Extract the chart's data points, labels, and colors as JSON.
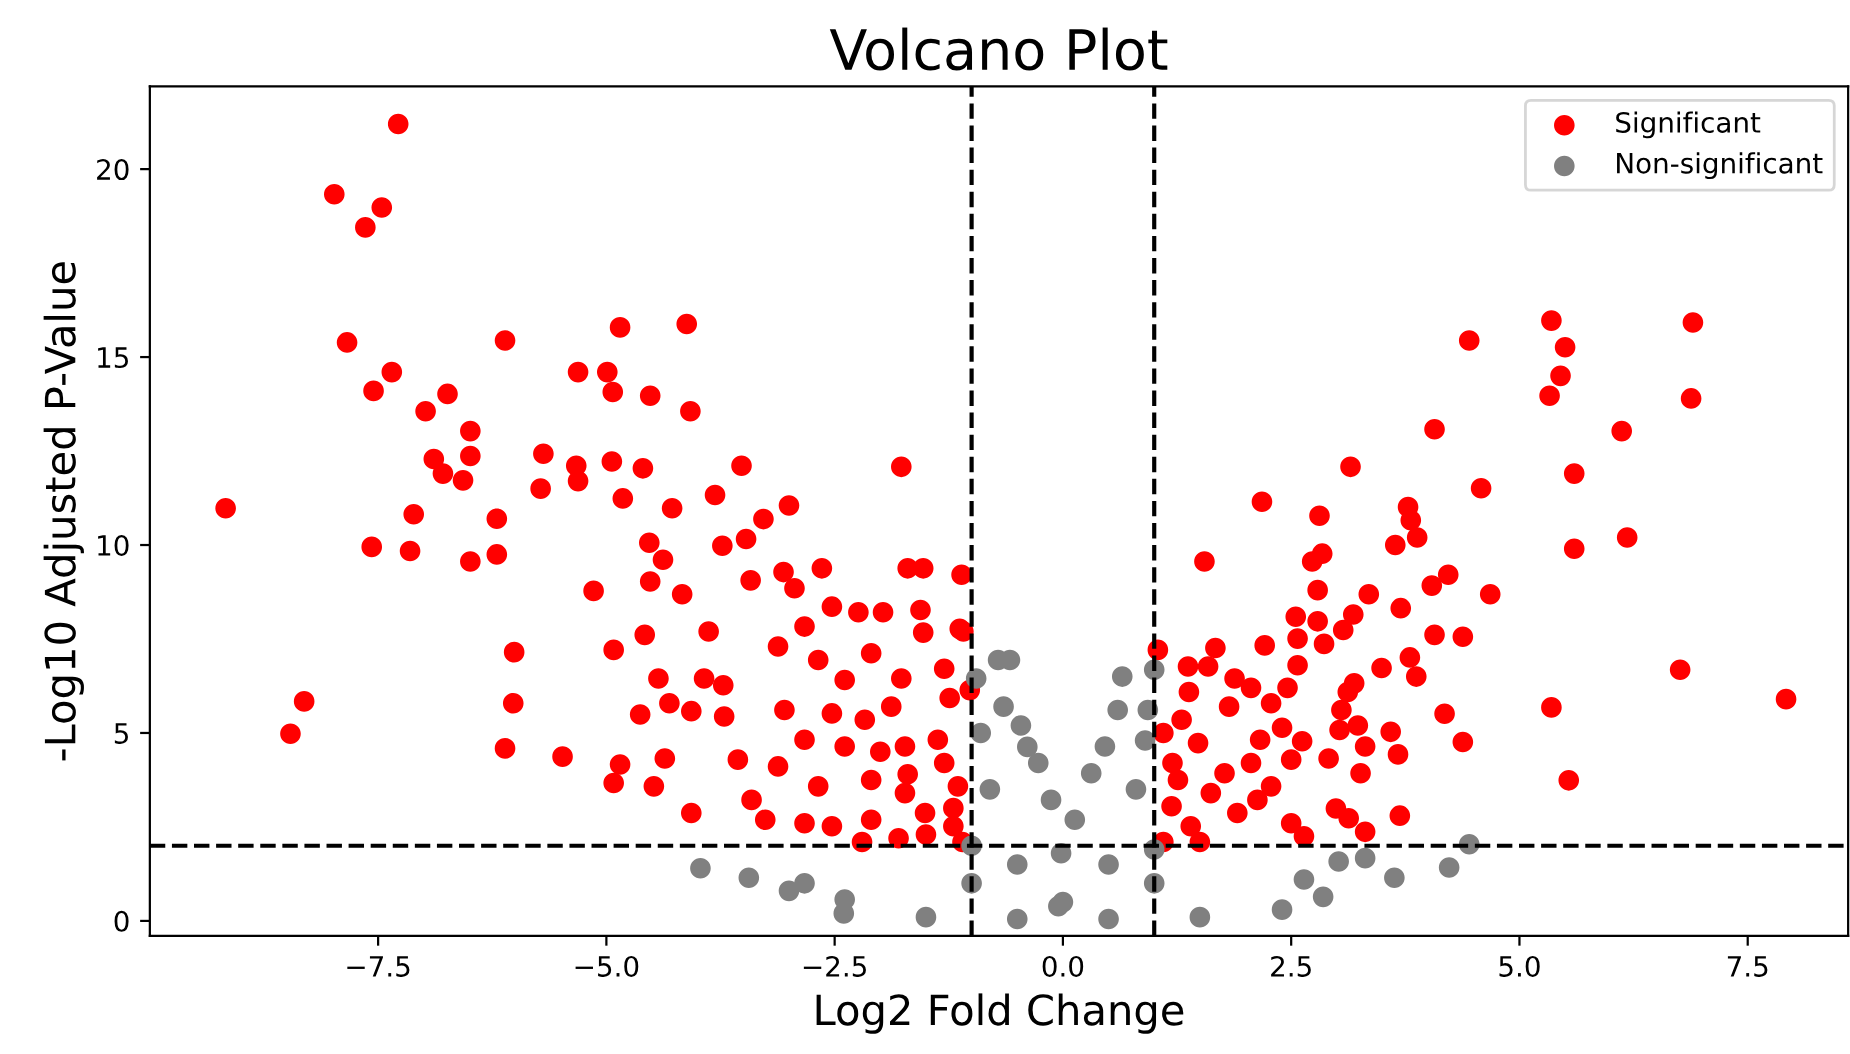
{
  "chart_data": {
    "type": "scatter",
    "title": "Volcano Plot",
    "xlabel": "Log2 Fold Change",
    "ylabel": "-Log10 Adjusted P-Value",
    "xlim": [
      -10.0,
      8.6
    ],
    "ylim": [
      -0.4,
      22.2
    ],
    "xticks": [
      {
        "value": -7.5,
        "label": "−7.5"
      },
      {
        "value": -5.0,
        "label": "−5.0"
      },
      {
        "value": -2.5,
        "label": "−2.5"
      },
      {
        "value": 0.0,
        "label": "0.0"
      },
      {
        "value": 2.5,
        "label": "2.5"
      },
      {
        "value": 5.0,
        "label": "5.0"
      },
      {
        "value": 7.5,
        "label": "7.5"
      }
    ],
    "yticks": [
      0,
      5,
      10,
      15,
      20
    ],
    "grid": false,
    "legend": "top right",
    "marker": "circle",
    "ref_lines": [
      {
        "axis": "x",
        "value": -1,
        "color": "#000000",
        "line_style": "dashed"
      },
      {
        "axis": "x",
        "value": 1,
        "color": "#000000",
        "line_style": "dashed"
      },
      {
        "axis": "y",
        "value": 2,
        "color": "#000000",
        "line_style": "dashed"
      }
    ],
    "series": [
      {
        "name": "Significant",
        "color": "#ff0000",
        "x": [
          -9.17,
          -7.28,
          -7.98,
          -7.46,
          -7.64,
          -7.84,
          -7.35,
          -7.55,
          -6.98,
          -6.74,
          -6.49,
          -6.49,
          -6.89,
          -6.79,
          -6.57,
          -7.11,
          -7.57,
          -7.15,
          -6.49,
          -6.2,
          -6.2,
          -6.11,
          -5.69,
          -5.72,
          -5.33,
          -5.31,
          -5.31,
          -4.99,
          -4.93,
          -4.85,
          -4.12,
          -4.52,
          -4.08,
          -4.94,
          -4.6,
          -4.82,
          -4.28,
          -5.14,
          -6.01,
          -6.02,
          -6.11,
          -5.48,
          -8.31,
          -8.46,
          -4.92,
          -4.58,
          -4.43,
          -4.63,
          -4.31,
          -4.85,
          -4.92,
          -4.48,
          -4.36,
          -4.53,
          -4.38,
          -4.52,
          -4.17,
          -4.07,
          -4.07,
          -3.93,
          -3.88,
          -3.81,
          -3.73,
          -3.52,
          -3.47,
          -3.28,
          -3.0,
          -3.42,
          -3.06,
          -2.94,
          -3.72,
          -3.71,
          -3.56,
          -3.41,
          -2.64,
          -2.24,
          -1.97,
          -1.77,
          -1.7,
          -1.53,
          -1.11,
          -1.56,
          -1.13,
          -1.53,
          -1.3,
          -1.77,
          -1.24,
          -2.53,
          -2.83,
          -3.12,
          -2.68,
          -2.39,
          -2.1,
          -3.05,
          -2.53,
          -2.17,
          -1.88,
          -2.83,
          -3.12,
          -2.39,
          -2.68,
          -3.26,
          -2.1,
          -1.73,
          -1.37,
          -1.15,
          -1.51,
          -2.1,
          -2.53,
          -1.2,
          -1.73,
          -2.83,
          -1.09,
          -1.02,
          -1.5,
          -1.2,
          -1.8,
          -2.2,
          -1.3,
          -1.7,
          -2.0,
          -1.1,
          6.9,
          5.35,
          5.5,
          5.45,
          5.33,
          4.45,
          6.88,
          6.12,
          4.07,
          3.15,
          5.6,
          4.58,
          2.18,
          2.81,
          6.18,
          5.6,
          1.55,
          3.78,
          3.81,
          3.88,
          3.64,
          2.84,
          2.73,
          4.22,
          4.04,
          2.79,
          4.68,
          3.35,
          3.7,
          2.55,
          3.18,
          2.79,
          3.07,
          4.07,
          4.38,
          2.57,
          2.86,
          2.21,
          1.67,
          1.04,
          3.8,
          1.37,
          1.59,
          2.57,
          3.49,
          3.87,
          1.88,
          2.06,
          2.46,
          3.19,
          6.76,
          7.92,
          5.35,
          5.54,
          3.12,
          1.38,
          3.05,
          1.82,
          2.28,
          4.18,
          1.3,
          3.23,
          2.4,
          3.03,
          3.59,
          4.38,
          2.62,
          2.16,
          1.48,
          3.31,
          2.91,
          3.67,
          2.5,
          2.06,
          3.26,
          1.77,
          1.26,
          2.28,
          2.99,
          3.13,
          3.69,
          3.31,
          2.5,
          2.64,
          1.91,
          1.4,
          1.19,
          2.13,
          1.62,
          1.1,
          1.2,
          1.5,
          1.1
        ],
        "values": [
          10.98,
          21.2,
          19.33,
          18.98,
          18.45,
          15.39,
          14.6,
          14.1,
          13.56,
          14.02,
          13.03,
          12.37,
          12.29,
          11.9,
          11.72,
          10.82,
          9.95,
          9.84,
          9.56,
          10.7,
          9.75,
          15.44,
          12.43,
          11.5,
          12.11,
          11.7,
          14.6,
          14.6,
          14.07,
          15.79,
          15.88,
          13.97,
          13.56,
          12.22,
          12.04,
          11.24,
          10.98,
          8.78,
          7.15,
          5.79,
          4.59,
          4.37,
          5.84,
          4.98,
          7.21,
          7.61,
          6.45,
          5.49,
          5.79,
          4.16,
          3.67,
          3.58,
          4.32,
          10.06,
          9.61,
          9.03,
          8.69,
          5.58,
          2.87,
          6.45,
          7.7,
          11.33,
          9.98,
          12.11,
          10.16,
          10.69,
          11.05,
          9.06,
          9.28,
          8.85,
          6.27,
          5.44,
          4.29,
          3.22,
          9.38,
          8.21,
          8.21,
          12.08,
          9.38,
          9.38,
          9.21,
          8.27,
          7.77,
          7.67,
          6.71,
          6.45,
          5.93,
          8.36,
          7.83,
          7.3,
          6.94,
          6.41,
          7.12,
          5.61,
          5.52,
          5.35,
          5.7,
          4.82,
          4.11,
          4.64,
          3.58,
          2.69,
          3.75,
          4.64,
          4.82,
          3.58,
          2.87,
          2.69,
          2.52,
          2.52,
          3.4,
          2.6,
          7.7,
          6.14,
          2.3,
          3.0,
          2.2,
          2.1,
          4.2,
          3.9,
          4.5,
          2.1,
          15.92,
          15.97,
          15.26,
          14.5,
          13.97,
          15.44,
          13.9,
          13.03,
          13.08,
          12.08,
          11.9,
          11.51,
          11.15,
          10.78,
          10.2,
          9.9,
          9.56,
          11.01,
          10.66,
          10.2,
          10.0,
          9.77,
          9.56,
          9.21,
          8.92,
          8.8,
          8.69,
          8.69,
          8.32,
          8.09,
          8.15,
          7.97,
          7.74,
          7.61,
          7.56,
          7.51,
          7.37,
          7.33,
          7.26,
          7.21,
          7.01,
          6.77,
          6.77,
          6.8,
          6.73,
          6.5,
          6.45,
          6.2,
          6.2,
          6.32,
          6.68,
          5.9,
          5.68,
          3.74,
          6.09,
          6.09,
          5.61,
          5.7,
          5.79,
          5.51,
          5.35,
          5.2,
          5.14,
          5.08,
          5.03,
          4.76,
          4.78,
          4.82,
          4.73,
          4.64,
          4.32,
          4.43,
          4.29,
          4.2,
          3.93,
          3.93,
          3.75,
          3.58,
          2.99,
          2.73,
          2.8,
          2.37,
          2.6,
          2.25,
          2.87,
          2.52,
          3.05,
          3.22,
          3.4,
          2.1,
          4.2,
          2.1,
          5.0
        ]
      },
      {
        "name": "Non-significant",
        "color": "#808080",
        "x": [
          -3.97,
          -3.44,
          -2.83,
          -2.39,
          4.45,
          4.23,
          3.63,
          2.85,
          3.31,
          3.02,
          2.64,
          -0.71,
          -0.58,
          -0.95,
          -0.65,
          -0.46,
          -0.39,
          -0.27,
          -0.13,
          -0.02,
          0.13,
          0.31,
          0.46,
          0.6,
          0.65,
          0.93,
          1.0,
          -0.05,
          -2.4,
          -1.5,
          -0.5,
          0.5,
          1.5,
          2.4,
          -3.0,
          -1.0,
          1.0,
          0.0,
          -1.0,
          1.0,
          -0.5,
          0.5,
          -0.8,
          0.8,
          -0.9,
          0.9
        ],
        "values": [
          1.4,
          1.15,
          1.0,
          0.57,
          2.04,
          1.42,
          1.15,
          0.64,
          1.67,
          1.58,
          1.1,
          6.94,
          6.94,
          6.45,
          5.7,
          5.2,
          4.63,
          4.2,
          3.22,
          1.8,
          2.69,
          3.93,
          4.64,
          5.61,
          6.5,
          5.61,
          6.68,
          0.39,
          0.2,
          0.1,
          0.05,
          0.05,
          0.1,
          0.3,
          0.8,
          1.0,
          1.0,
          0.5,
          2.0,
          1.9,
          1.5,
          1.5,
          3.5,
          3.5,
          5.0,
          4.8
        ]
      }
    ]
  }
}
